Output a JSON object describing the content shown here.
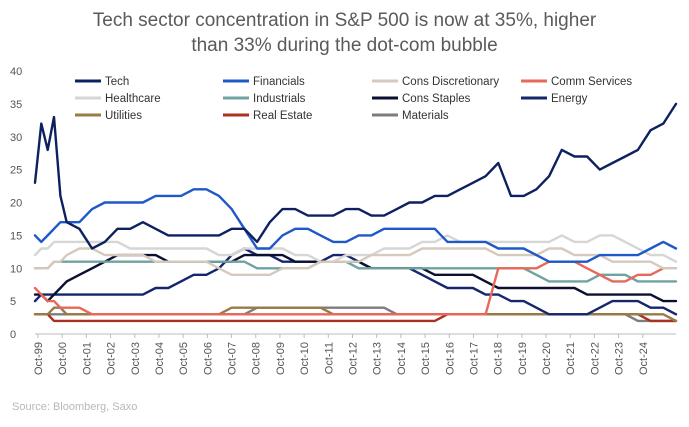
{
  "title_line1": "Tech sector concentration in S&P 500 is now at 35%, higher",
  "title_line2": "than 33% during the dot-com bubble",
  "source": "Source: Bloomberg, Saxo",
  "chart_data": {
    "type": "line",
    "title": "Tech sector concentration in S&P 500 is now at 35%, higher than 33% during the dot-com bubble",
    "xlabel": "",
    "ylabel": "",
    "ylim": [
      0,
      40
    ],
    "yticks": [
      0,
      5,
      10,
      15,
      20,
      25,
      30,
      35,
      40
    ],
    "xlim": [
      1999.75,
      2025.0
    ],
    "xtick_labels": [
      "Oct-99",
      "Oct-00",
      "Oct-01",
      "Oct-02",
      "Oct-03",
      "Oct-04",
      "Oct-05",
      "Oct-06",
      "Oct-07",
      "Oct-08",
      "Oct-09",
      "Oct-10",
      "Oct-11",
      "Oct-12",
      "Oct-13",
      "Oct-14",
      "Oct-15",
      "Oct-16",
      "Oct-17",
      "Oct-18",
      "Oct-19",
      "Oct-20",
      "Oct-21",
      "Oct-22",
      "Oct-23",
      "Oct-24"
    ],
    "x": [
      1999.75,
      2000.0,
      2000.25,
      2000.5,
      2000.75,
      2001.0,
      2001.5,
      2002.0,
      2002.5,
      2003.0,
      2003.5,
      2004.0,
      2004.5,
      2005.0,
      2005.5,
      2006.0,
      2006.5,
      2007.0,
      2007.5,
      2008.0,
      2008.5,
      2009.0,
      2009.5,
      2010.0,
      2010.5,
      2011.0,
      2011.5,
      2012.0,
      2012.5,
      2013.0,
      2013.5,
      2014.0,
      2014.5,
      2015.0,
      2015.5,
      2016.0,
      2016.5,
      2017.0,
      2017.5,
      2018.0,
      2018.5,
      2019.0,
      2019.5,
      2020.0,
      2020.5,
      2021.0,
      2021.5,
      2022.0,
      2022.5,
      2023.0,
      2023.5,
      2024.0,
      2024.5,
      2025.0
    ],
    "legend_columns": 4,
    "series": [
      {
        "name": "Tech",
        "color": "#0d2160",
        "values": [
          23,
          32,
          28,
          33,
          21,
          17,
          16,
          13,
          14,
          16,
          16,
          17,
          16,
          15,
          15,
          15,
          15,
          15,
          16,
          16,
          14,
          17,
          19,
          19,
          18,
          18,
          18,
          19,
          19,
          18,
          18,
          19,
          20,
          20,
          21,
          21,
          22,
          23,
          24,
          26,
          21,
          21,
          22,
          24,
          28,
          27,
          27,
          25,
          26,
          27,
          28,
          31,
          32,
          35
        ]
      },
      {
        "name": "Financials",
        "color": "#1f58c8",
        "values": [
          15,
          14,
          15,
          16,
          17,
          17,
          17,
          19,
          20,
          20,
          20,
          20,
          21,
          21,
          21,
          22,
          22,
          21,
          19,
          16,
          13,
          13,
          15,
          16,
          16,
          15,
          14,
          14,
          15,
          15,
          16,
          16,
          16,
          16,
          16,
          14,
          14,
          14,
          14,
          13,
          13,
          13,
          12,
          11,
          11,
          11,
          11,
          12,
          12,
          12,
          12,
          13,
          14,
          13
        ]
      },
      {
        "name": "Cons Discretionary",
        "color": "#d6cabd",
        "values": [
          10,
          10,
          10,
          11,
          11,
          12,
          13,
          13,
          12,
          12,
          12,
          12,
          11,
          11,
          11,
          11,
          11,
          10,
          9,
          9,
          9,
          9,
          10,
          10,
          10,
          11,
          11,
          11,
          11,
          12,
          12,
          12,
          12,
          13,
          13,
          13,
          13,
          13,
          13,
          12,
          12,
          12,
          12,
          13,
          13,
          12,
          12,
          12,
          11,
          11,
          11,
          11,
          10,
          10
        ]
      },
      {
        "name": "Comm Services",
        "color": "#e8685a",
        "values": [
          7,
          6,
          5,
          5,
          4,
          4,
          4,
          3,
          3,
          3,
          3,
          3,
          3,
          3,
          3,
          3,
          3,
          3,
          3,
          3,
          3,
          3,
          3,
          3,
          3,
          3,
          3,
          3,
          3,
          3,
          3,
          3,
          3,
          3,
          3,
          3,
          3,
          3,
          3,
          10,
          10,
          10,
          10,
          11,
          11,
          11,
          10,
          9,
          8,
          8,
          9,
          9,
          10,
          10
        ]
      },
      {
        "name": "Healthcare",
        "color": "#d6d6d6",
        "values": [
          12,
          13,
          13,
          14,
          14,
          14,
          14,
          14,
          14,
          14,
          13,
          13,
          13,
          13,
          13,
          13,
          13,
          12,
          12,
          13,
          13,
          13,
          13,
          12,
          12,
          11,
          11,
          12,
          12,
          12,
          13,
          13,
          13,
          14,
          14,
          15,
          14,
          14,
          14,
          14,
          14,
          14,
          14,
          14,
          15,
          14,
          14,
          15,
          15,
          14,
          13,
          12,
          12,
          11
        ]
      },
      {
        "name": "Industrials",
        "color": "#6fa3a0",
        "values": [
          10,
          10,
          10,
          11,
          11,
          11,
          11,
          11,
          11,
          11,
          11,
          11,
          11,
          11,
          11,
          11,
          11,
          11,
          11,
          11,
          10,
          10,
          10,
          10,
          10,
          11,
          11,
          11,
          10,
          10,
          10,
          10,
          10,
          10,
          10,
          10,
          10,
          10,
          10,
          10,
          10,
          10,
          9,
          8,
          8,
          8,
          8,
          9,
          9,
          9,
          8,
          8,
          8,
          8
        ]
      },
      {
        "name": "Cons Staples",
        "color": "#0b1030",
        "values": [
          6,
          6,
          5,
          6,
          7,
          8,
          9,
          10,
          11,
          12,
          12,
          12,
          12,
          11,
          11,
          11,
          11,
          11,
          11,
          12,
          12,
          12,
          12,
          11,
          11,
          11,
          11,
          11,
          11,
          10,
          10,
          10,
          10,
          10,
          9,
          9,
          9,
          9,
          8,
          7,
          7,
          7,
          7,
          7,
          7,
          7,
          6,
          6,
          6,
          6,
          6,
          6,
          5,
          5
        ]
      },
      {
        "name": "Energy",
        "color": "#14266e",
        "values": [
          5,
          6,
          6,
          6,
          6,
          6,
          6,
          6,
          6,
          6,
          6,
          6,
          7,
          7,
          8,
          9,
          9,
          10,
          12,
          13,
          12,
          12,
          11,
          11,
          11,
          11,
          12,
          12,
          11,
          10,
          10,
          10,
          10,
          9,
          8,
          7,
          7,
          7,
          6,
          6,
          5,
          5,
          4,
          3,
          3,
          3,
          3,
          4,
          5,
          5,
          5,
          4,
          4,
          3
        ]
      },
      {
        "name": "Utilities",
        "color": "#9a7a48",
        "values": [
          3,
          3,
          3,
          4,
          4,
          3,
          3,
          3,
          3,
          3,
          3,
          3,
          3,
          3,
          3,
          3,
          3,
          3,
          4,
          4,
          4,
          4,
          4,
          4,
          4,
          4,
          3,
          3,
          3,
          3,
          3,
          3,
          3,
          3,
          3,
          3,
          3,
          3,
          3,
          3,
          3,
          3,
          3,
          3,
          3,
          3,
          3,
          3,
          3,
          3,
          3,
          3,
          3,
          2
        ]
      },
      {
        "name": "Real Estate",
        "color": "#a83220",
        "values": [
          3,
          3,
          3,
          2,
          2,
          2,
          2,
          2,
          2,
          2,
          2,
          2,
          2,
          2,
          2,
          2,
          2,
          2,
          2,
          2,
          2,
          2,
          2,
          2,
          2,
          2,
          2,
          2,
          2,
          2,
          2,
          2,
          2,
          2,
          2,
          3,
          3,
          3,
          3,
          3,
          3,
          3,
          3,
          3,
          3,
          3,
          3,
          3,
          3,
          3,
          3,
          2,
          2,
          2
        ]
      },
      {
        "name": "Materials",
        "color": "#7d7d7d",
        "values": [
          3,
          3,
          3,
          3,
          3,
          3,
          3,
          3,
          3,
          3,
          3,
          3,
          3,
          3,
          3,
          3,
          3,
          3,
          3,
          3,
          4,
          4,
          4,
          4,
          4,
          4,
          4,
          4,
          4,
          4,
          4,
          3,
          3,
          3,
          3,
          3,
          3,
          3,
          3,
          3,
          3,
          3,
          3,
          3,
          3,
          3,
          3,
          3,
          3,
          3,
          2,
          2,
          2,
          2
        ]
      }
    ]
  }
}
